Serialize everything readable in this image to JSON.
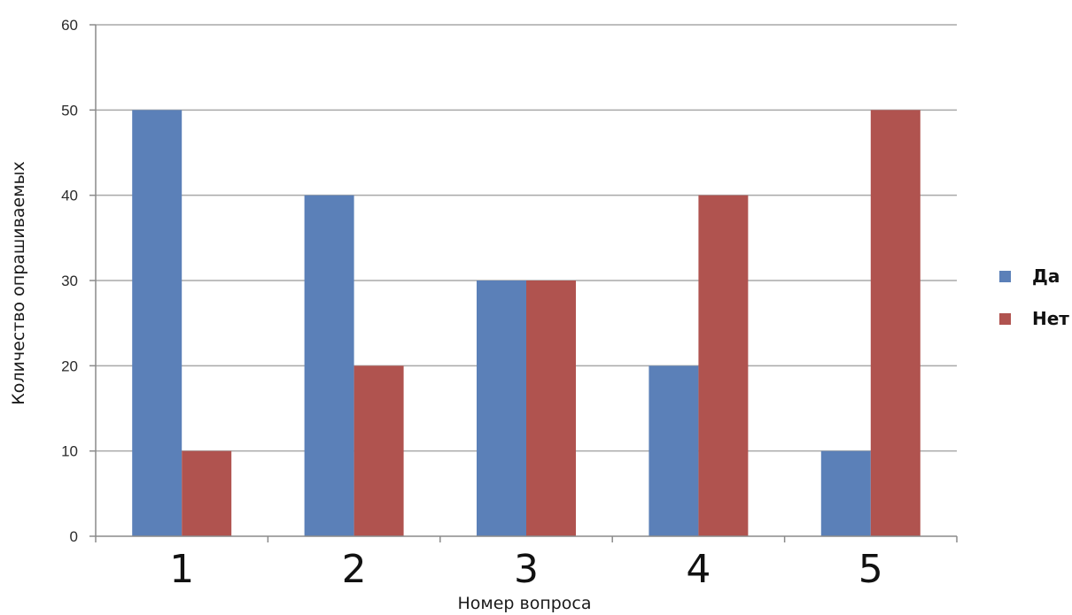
{
  "chart_data": {
    "type": "bar",
    "categories": [
      "1",
      "2",
      "3",
      "4",
      "5"
    ],
    "series": [
      {
        "name": "Да",
        "values": [
          50,
          40,
          30,
          20,
          10
        ],
        "color": "#5b80b8"
      },
      {
        "name": "Нет",
        "values": [
          10,
          20,
          30,
          40,
          50
        ],
        "color": "#b0534f"
      }
    ],
    "xlabel": "Номер вопроса",
    "ylabel": "Количество опрашиваемых",
    "ylim": [
      0,
      60
    ],
    "yticks": [
      0,
      10,
      20,
      30,
      40,
      50,
      60
    ],
    "grid": true,
    "legend_position": "right"
  }
}
